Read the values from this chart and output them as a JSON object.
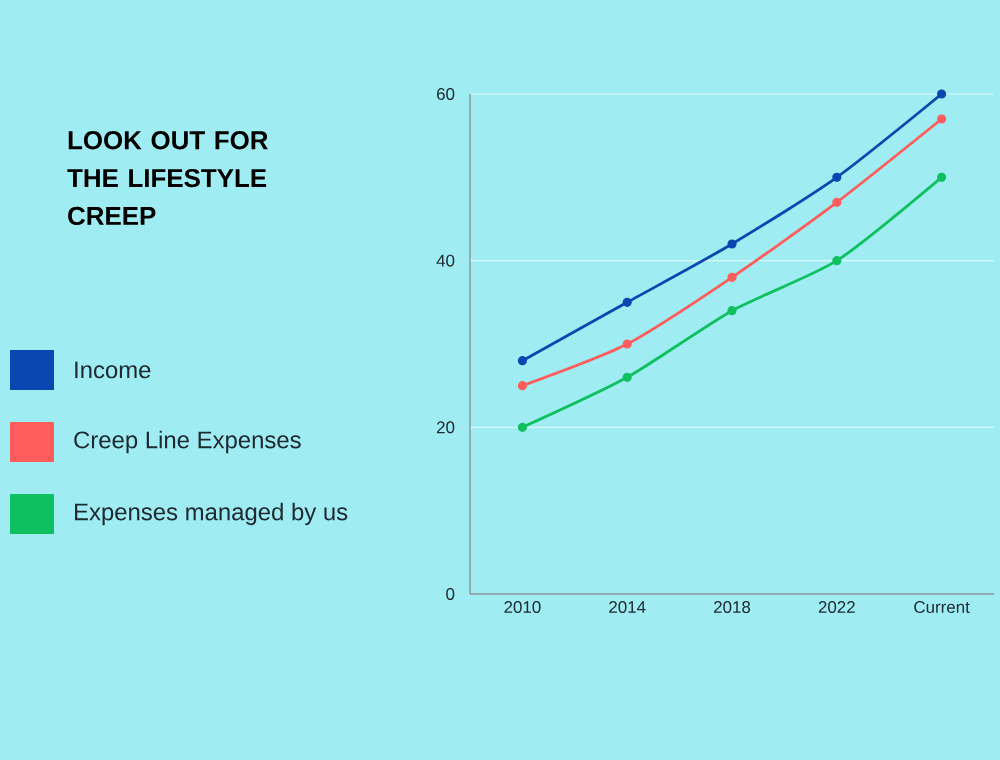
{
  "chart_data": {
    "type": "line",
    "title": "LOOK OUT FOR THE LIFESTYLE CREEP",
    "categories": [
      "2010",
      "2014",
      "2018",
      "2022",
      "Current"
    ],
    "series": [
      {
        "name": "Income",
        "color": "#0a47b0",
        "values": [
          28,
          35,
          42,
          50,
          60
        ]
      },
      {
        "name": "Creep Line Expenses",
        "color": "#ff5c5c",
        "values": [
          25,
          30,
          38,
          47,
          57
        ]
      },
      {
        "name": "Expenses managed by us",
        "color": "#0fc060",
        "values": [
          20,
          26,
          34,
          40,
          50
        ]
      }
    ],
    "ylim": [
      0,
      60
    ],
    "yticks": [
      0,
      20,
      40,
      60
    ],
    "grid": "y",
    "legend": "left",
    "marker": "circle",
    "line_style": "solid"
  }
}
